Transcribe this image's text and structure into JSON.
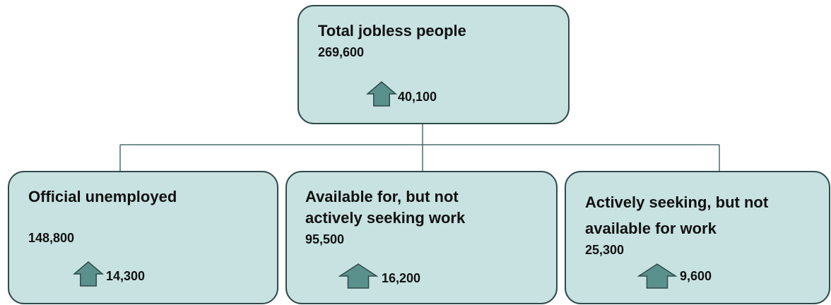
{
  "nodes": [
    {
      "label": [
        "Total jobless people"
      ],
      "value": "269,600",
      "change": "40,100"
    },
    {
      "label": [
        "Official unemployed"
      ],
      "value": "148,800",
      "change": "14,300"
    },
    {
      "label": [
        "Available for, but not",
        "actively seeking work"
      ],
      "value": "95,500",
      "change": "16,200"
    },
    {
      "label": [
        "Actively seeking, but not",
        "available for work"
      ],
      "value": "25,300",
      "change": "9,600"
    }
  ]
}
